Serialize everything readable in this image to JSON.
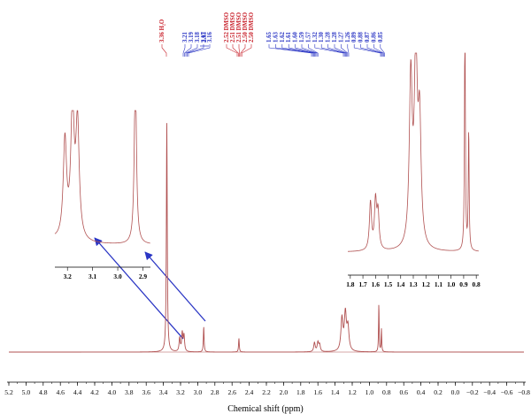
{
  "chart_data": {
    "type": "line",
    "title": "",
    "xlabel": "Chemical shift (ppm)",
    "ylabel": "",
    "xlim": [
      5.2,
      -0.8
    ],
    "x_reversed": true,
    "grid": false,
    "line_color": "#b05050",
    "main_ticks": [
      "5.2",
      "5.0",
      "4.8",
      "4.6",
      "4.4",
      "4.2",
      "4.0",
      "3.8",
      "3.6",
      "3.4",
      "3.2",
      "3.0",
      "2.8",
      "2.6",
      "2.4",
      "2.2",
      "2.0",
      "1.8",
      "1.6",
      "1.4",
      "1.2",
      "1.0",
      "0.8",
      "0.6",
      "0.4",
      "0.2",
      "0.0",
      "−0.2",
      "−0.4",
      "−0.6",
      "−0.8"
    ],
    "peaks": [
      {
        "shift": 3.36,
        "height": 1.0,
        "width": 0.006
      },
      {
        "shift": 3.21,
        "height": 0.06,
        "width": 0.008
      },
      {
        "shift": 3.18,
        "height": 0.08,
        "width": 0.008
      },
      {
        "shift": 3.16,
        "height": 0.07,
        "width": 0.008
      },
      {
        "shift": 2.93,
        "height": 0.11,
        "width": 0.005
      },
      {
        "shift": 2.52,
        "height": 0.06,
        "width": 0.005
      },
      {
        "shift": 1.64,
        "height": 0.04,
        "width": 0.01
      },
      {
        "shift": 1.6,
        "height": 0.04,
        "width": 0.01
      },
      {
        "shift": 1.58,
        "height": 0.03,
        "width": 0.01
      },
      {
        "shift": 1.32,
        "height": 0.14,
        "width": 0.014
      },
      {
        "shift": 1.28,
        "height": 0.16,
        "width": 0.014
      },
      {
        "shift": 1.25,
        "height": 0.1,
        "width": 0.014
      },
      {
        "shift": 0.89,
        "height": 0.21,
        "width": 0.004
      },
      {
        "shift": 0.86,
        "height": 0.1,
        "width": 0.004
      }
    ],
    "peak_labels_red_water": {
      "text": "3.36 H₂O",
      "shift": 3.36
    },
    "peak_labels_blue_a": [
      {
        "text": "3.21",
        "shift": 3.21
      },
      {
        "text": "3.19",
        "shift": 3.19
      },
      {
        "text": "3.18",
        "shift": 3.18
      },
      {
        "text": "3.17",
        "shift": 3.17
      },
      {
        "text": "3.16",
        "shift": 3.16
      }
    ],
    "peak_label_293": {
      "text": "2.93",
      "shift": 2.93
    },
    "peak_labels_dmso": [
      {
        "text": "2.52 DMSO",
        "shift": 2.52
      },
      {
        "text": "2.51 DMSO",
        "shift": 2.51
      },
      {
        "text": "2.51 DMSO",
        "shift": 2.51
      },
      {
        "text": "2.50 DMSO",
        "shift": 2.5
      },
      {
        "text": "2.50 DMSO",
        "shift": 2.5
      }
    ],
    "peak_labels_blue_b": [
      {
        "text": "1.65",
        "shift": 1.65
      },
      {
        "text": "1.63",
        "shift": 1.63
      },
      {
        "text": "1.62",
        "shift": 1.62
      },
      {
        "text": "1.61",
        "shift": 1.61
      },
      {
        "text": "1.60",
        "shift": 1.6
      },
      {
        "text": "1.59",
        "shift": 1.59
      },
      {
        "text": "1.57",
        "shift": 1.57
      },
      {
        "text": "1.32",
        "shift": 1.32
      },
      {
        "text": "1.30",
        "shift": 1.3
      },
      {
        "text": "1.28",
        "shift": 1.28
      },
      {
        "text": "1.28",
        "shift": 1.28
      },
      {
        "text": "1.27",
        "shift": 1.27
      },
      {
        "text": "1.26",
        "shift": 1.26
      },
      {
        "text": "0.89",
        "shift": 0.89
      },
      {
        "text": "0.88",
        "shift": 0.88
      },
      {
        "text": "0.87",
        "shift": 0.87
      },
      {
        "text": "0.86",
        "shift": 0.86
      },
      {
        "text": "0.85",
        "shift": 0.85
      }
    ],
    "inset_left": {
      "xlim": [
        3.25,
        2.87
      ],
      "ticks": [
        "3.2",
        "3.1",
        "3.0",
        "2.9"
      ]
    },
    "inset_right": {
      "xlim": [
        1.82,
        0.78
      ],
      "ticks": [
        "1.8",
        "1.7",
        "1.6",
        "1.5",
        "1.4",
        "1.3",
        "1.2",
        "1.1",
        "1.0",
        "0.9",
        "0.8"
      ]
    }
  }
}
